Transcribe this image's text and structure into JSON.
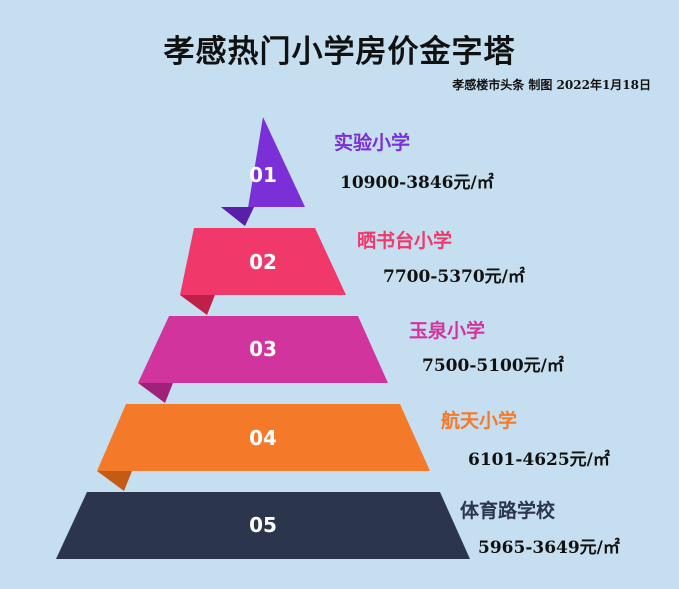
{
  "title": "孝感热门小学房价金字塔",
  "credit": "孝感楼市头条 制图 2022年1月18日",
  "tiers": [
    {
      "number": "01",
      "school": "实验小学",
      "price": "10900-3846元/㎡",
      "color": "#7b2fd6"
    },
    {
      "number": "02",
      "school": "晒书台小学",
      "price": "7700-5370元/㎡",
      "color": "#f0386a"
    },
    {
      "number": "03",
      "school": "玉泉小学",
      "price": "7500-5100元/㎡",
      "color": "#d2349e"
    },
    {
      "number": "04",
      "school": "航天小学",
      "price": "6101-4625元/㎡",
      "color": "#f47a2a"
    },
    {
      "number": "05",
      "school": "体育路学校",
      "price": "5965-3649元/㎡",
      "color": "#2b364c"
    }
  ]
}
